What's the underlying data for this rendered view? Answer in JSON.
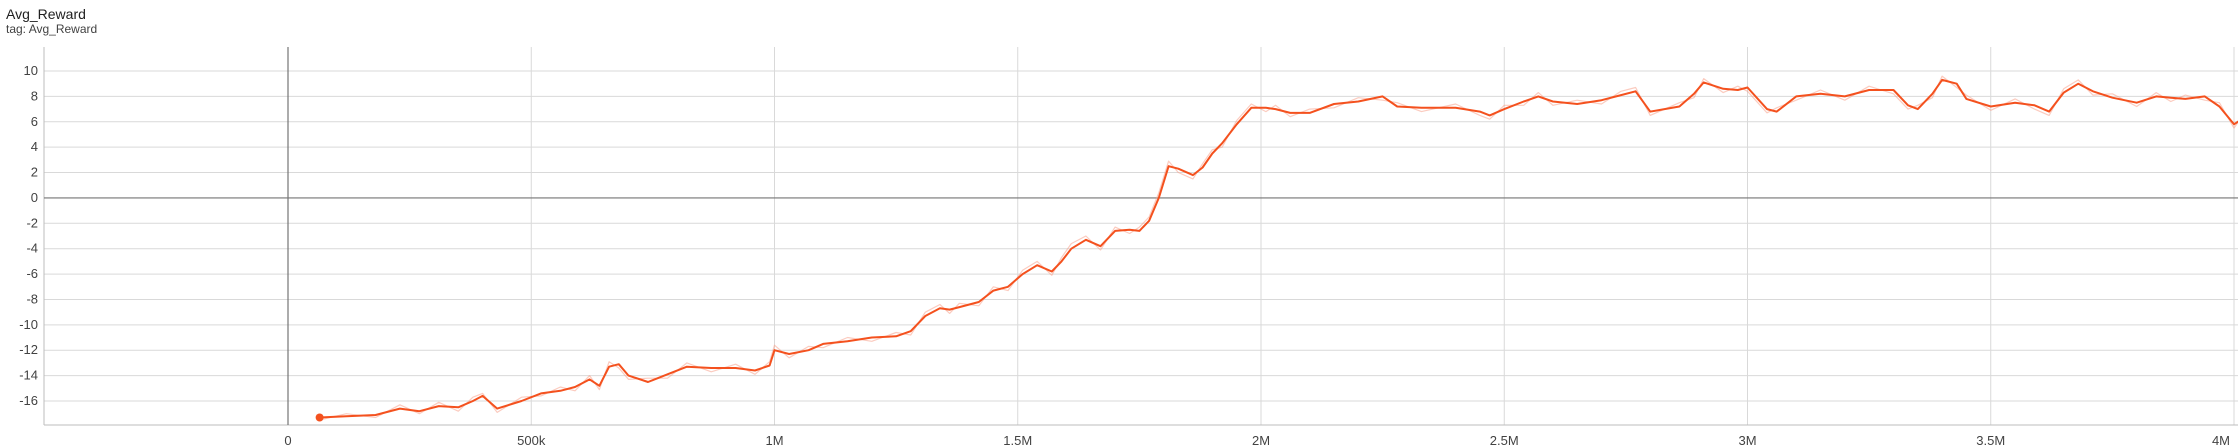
{
  "header": {
    "title": "Avg_Reward",
    "subtitle": "tag: Avg_Reward"
  },
  "chart_data": {
    "type": "line",
    "title": "Avg_Reward",
    "subtitle": "tag: Avg_Reward",
    "xlabel": "",
    "ylabel": "",
    "xlim": [
      -500000,
      4020000
    ],
    "ylim": [
      -18,
      11.5
    ],
    "x_ticks": [
      {
        "value": 0,
        "label": "0"
      },
      {
        "value": 500000,
        "label": "500k"
      },
      {
        "value": 1000000,
        "label": "1M"
      },
      {
        "value": 1500000,
        "label": "1.5M"
      },
      {
        "value": 2000000,
        "label": "2M"
      },
      {
        "value": 2500000,
        "label": "2.5M"
      },
      {
        "value": 3000000,
        "label": "3M"
      },
      {
        "value": 3500000,
        "label": "3.5M"
      },
      {
        "value": 4000000,
        "label": "4M"
      }
    ],
    "y_ticks": [
      {
        "value": 10,
        "label": "10"
      },
      {
        "value": 8,
        "label": "8"
      },
      {
        "value": 6,
        "label": "6"
      },
      {
        "value": 4,
        "label": "4"
      },
      {
        "value": 2,
        "label": "2"
      },
      {
        "value": 0,
        "label": "0"
      },
      {
        "value": -2,
        "label": "-2"
      },
      {
        "value": -4,
        "label": "-4"
      },
      {
        "value": -6,
        "label": "-6"
      },
      {
        "value": -8,
        "label": "-8"
      },
      {
        "value": -10,
        "label": "-10"
      },
      {
        "value": -12,
        "label": "-12"
      },
      {
        "value": -14,
        "label": "-14"
      },
      {
        "value": -16,
        "label": "-16"
      }
    ],
    "grid": true,
    "legend": "none",
    "colors": {
      "smoothed": "#f4511e",
      "raw": "#f8a08a",
      "grid": "#d9d9d9",
      "zero_axis": "#757575"
    },
    "series": [
      {
        "role": "smoothed",
        "x": [
          65000,
          120000,
          180000,
          230000,
          270000,
          310000,
          350000,
          380000,
          400000,
          430000,
          480000,
          520000,
          560000,
          590000,
          620000,
          640000,
          660000,
          680000,
          700000,
          740000,
          780000,
          820000,
          870000,
          920000,
          960000,
          990000,
          1000000,
          1030000,
          1070000,
          1100000,
          1150000,
          1200000,
          1250000,
          1280000,
          1310000,
          1340000,
          1360000,
          1380000,
          1420000,
          1450000,
          1480000,
          1510000,
          1540000,
          1570000,
          1590000,
          1610000,
          1640000,
          1670000,
          1700000,
          1730000,
          1750000,
          1770000,
          1790000,
          1810000,
          1830000,
          1860000,
          1880000,
          1900000,
          1920000,
          1950000,
          1980000,
          2010000,
          2030000,
          2060000,
          2100000,
          2150000,
          2200000,
          2250000,
          2280000,
          2330000,
          2400000,
          2450000,
          2470000,
          2500000,
          2540000,
          2570000,
          2600000,
          2650000,
          2700000,
          2740000,
          2770000,
          2800000,
          2860000,
          2890000,
          2910000,
          2950000,
          2980000,
          3000000,
          3040000,
          3060000,
          3100000,
          3150000,
          3200000,
          3250000,
          3300000,
          3330000,
          3350000,
          3380000,
          3400000,
          3430000,
          3450000,
          3500000,
          3550000,
          3590000,
          3620000,
          3650000,
          3680000,
          3710000,
          3750000,
          3800000,
          3840000,
          3870000,
          3900000,
          3940000,
          3970000,
          4000000,
          4020000
        ],
        "y": [
          -17.3,
          -17.2,
          -17.1,
          -16.6,
          -16.8,
          -16.4,
          -16.5,
          -16.0,
          -15.6,
          -16.6,
          -16.0,
          -15.4,
          -15.2,
          -14.9,
          -14.3,
          -14.8,
          -13.3,
          -13.1,
          -14.0,
          -14.5,
          -13.9,
          -13.3,
          -13.4,
          -13.4,
          -13.6,
          -13.2,
          -12.0,
          -12.3,
          -12.0,
          -11.5,
          -11.3,
          -11.0,
          -10.9,
          -10.5,
          -9.3,
          -8.7,
          -8.8,
          -8.6,
          -8.2,
          -7.3,
          -7.0,
          -6.0,
          -5.3,
          -5.8,
          -5.0,
          -4.0,
          -3.3,
          -3.8,
          -2.6,
          -2.5,
          -2.6,
          -1.8,
          0.0,
          2.5,
          2.3,
          1.8,
          2.4,
          3.5,
          4.3,
          5.8,
          7.1,
          7.1,
          7.0,
          6.7,
          6.7,
          7.4,
          7.6,
          8.0,
          7.2,
          7.1,
          7.1,
          6.8,
          6.5,
          7.0,
          7.6,
          8.0,
          7.6,
          7.4,
          7.7,
          8.1,
          8.4,
          6.8,
          7.2,
          8.2,
          9.1,
          8.6,
          8.5,
          8.7,
          7.0,
          6.8,
          8.0,
          8.2,
          8.0,
          8.5,
          8.5,
          7.3,
          7.0,
          8.2,
          9.3,
          9.0,
          7.8,
          7.2,
          7.5,
          7.3,
          6.8,
          8.3,
          9.0,
          8.4,
          7.9,
          7.5,
          8.0,
          7.9,
          7.8,
          8.0,
          7.2,
          5.8,
          6.3
        ]
      },
      {
        "role": "raw",
        "x": [
          65000,
          120000,
          180000,
          230000,
          270000,
          310000,
          350000,
          380000,
          400000,
          430000,
          480000,
          520000,
          560000,
          590000,
          620000,
          640000,
          660000,
          680000,
          700000,
          740000,
          780000,
          820000,
          870000,
          920000,
          960000,
          990000,
          1000000,
          1030000,
          1070000,
          1100000,
          1150000,
          1200000,
          1250000,
          1280000,
          1310000,
          1340000,
          1360000,
          1380000,
          1420000,
          1450000,
          1480000,
          1510000,
          1540000,
          1570000,
          1590000,
          1610000,
          1640000,
          1670000,
          1700000,
          1730000,
          1750000,
          1770000,
          1790000,
          1810000,
          1830000,
          1860000,
          1880000,
          1900000,
          1920000,
          1950000,
          1980000,
          2010000,
          2030000,
          2060000,
          2100000,
          2150000,
          2200000,
          2250000,
          2280000,
          2330000,
          2400000,
          2450000,
          2470000,
          2500000,
          2540000,
          2570000,
          2600000,
          2650000,
          2700000,
          2740000,
          2770000,
          2800000,
          2860000,
          2890000,
          2910000,
          2950000,
          2980000,
          3000000,
          3040000,
          3060000,
          3100000,
          3150000,
          3200000,
          3250000,
          3300000,
          3330000,
          3350000,
          3380000,
          3400000,
          3430000,
          3450000,
          3500000,
          3550000,
          3590000,
          3620000,
          3650000,
          3680000,
          3710000,
          3750000,
          3800000,
          3840000,
          3870000,
          3900000,
          3940000,
          3970000,
          4000000,
          4020000
        ],
        "y": [
          -17.5,
          -17.0,
          -17.3,
          -16.3,
          -17.0,
          -16.1,
          -16.8,
          -15.7,
          -15.4,
          -16.9,
          -15.7,
          -15.6,
          -14.9,
          -15.2,
          -14.0,
          -15.1,
          -12.9,
          -13.4,
          -14.3,
          -14.2,
          -14.2,
          -13.0,
          -13.7,
          -13.1,
          -13.9,
          -12.9,
          -11.6,
          -12.6,
          -11.7,
          -11.8,
          -11.0,
          -11.3,
          -10.6,
          -10.8,
          -9.0,
          -8.4,
          -9.1,
          -8.3,
          -8.5,
          -7.0,
          -7.3,
          -5.7,
          -5.0,
          -6.1,
          -4.7,
          -3.6,
          -3.0,
          -4.1,
          -2.3,
          -2.8,
          -2.3,
          -1.5,
          0.4,
          2.9,
          2.0,
          1.5,
          2.7,
          3.8,
          4.0,
          6.1,
          7.4,
          6.8,
          7.3,
          6.4,
          7.0,
          7.1,
          7.9,
          7.7,
          7.5,
          6.8,
          7.4,
          6.5,
          6.2,
          7.3,
          7.3,
          8.3,
          7.3,
          7.7,
          7.4,
          8.4,
          8.7,
          6.5,
          7.5,
          7.9,
          9.4,
          8.3,
          8.8,
          8.4,
          6.7,
          7.1,
          7.7,
          8.5,
          7.7,
          8.8,
          8.2,
          7.0,
          7.3,
          7.9,
          9.6,
          8.7,
          8.1,
          6.9,
          7.8,
          7.0,
          6.5,
          8.6,
          9.3,
          8.1,
          8.2,
          7.2,
          8.3,
          7.6,
          8.1,
          7.7,
          7.5,
          5.5,
          6.6
        ]
      }
    ]
  }
}
